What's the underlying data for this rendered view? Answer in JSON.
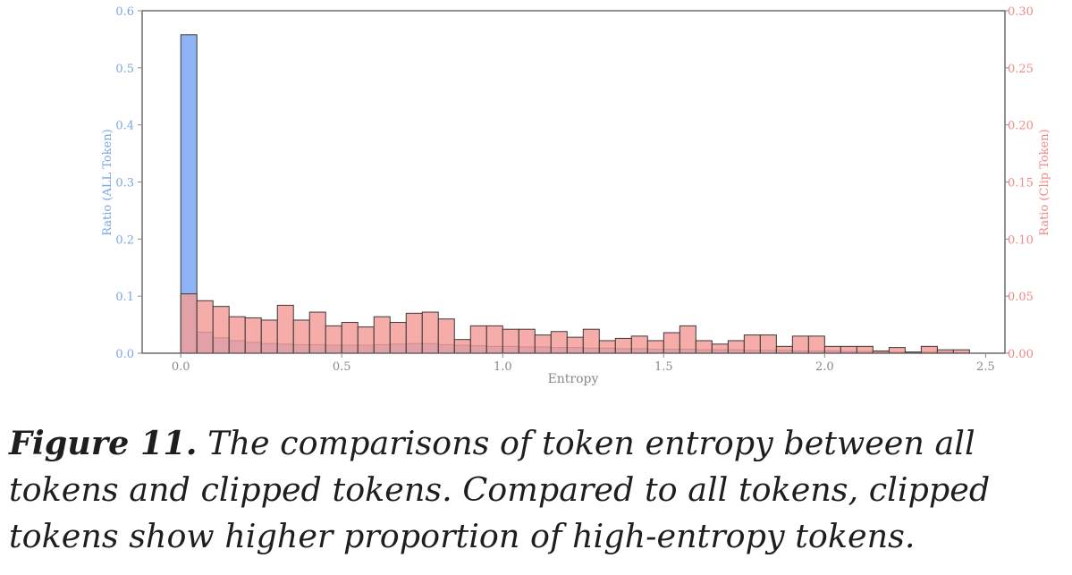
{
  "chart_data": {
    "type": "bar",
    "xlabel": "Entropy",
    "xlim": [
      -0.12,
      2.56
    ],
    "x_ticks": [
      "0.0",
      "0.5",
      "1.0",
      "1.5",
      "2.0",
      "2.5"
    ],
    "x_tick_values": [
      0.0,
      0.5,
      1.0,
      1.5,
      2.0,
      2.5
    ],
    "bin_width": 0.05,
    "bin_starts": [
      0.0,
      0.05,
      0.1,
      0.15,
      0.2,
      0.25,
      0.3,
      0.35,
      0.4,
      0.45,
      0.5,
      0.55,
      0.6,
      0.65,
      0.7,
      0.75,
      0.8,
      0.85,
      0.9,
      0.95,
      1.0,
      1.05,
      1.1,
      1.15,
      1.2,
      1.25,
      1.3,
      1.35,
      1.4,
      1.45,
      1.5,
      1.55,
      1.6,
      1.65,
      1.7,
      1.75,
      1.8,
      1.85,
      1.9,
      1.95,
      2.0,
      2.05,
      2.1,
      2.15,
      2.2,
      2.25,
      2.3,
      2.35,
      2.4
    ],
    "axes": {
      "left": {
        "label": "Ratio (ALL Token)",
        "ylim": [
          0,
          0.6
        ],
        "ticks": [
          "0.0",
          "0.1",
          "0.2",
          "0.3",
          "0.4",
          "0.5",
          "0.6"
        ],
        "tick_values": [
          0,
          0.1,
          0.2,
          0.3,
          0.4,
          0.5,
          0.6
        ],
        "color": "#7aa6e6"
      },
      "right": {
        "label": "Ratio (Clip Token)",
        "ylim": [
          0,
          0.3
        ],
        "ticks": [
          "0.00",
          "0.05",
          "0.10",
          "0.15",
          "0.20",
          "0.25",
          "0.30"
        ],
        "tick_values": [
          0,
          0.05,
          0.1,
          0.15,
          0.2,
          0.25,
          0.3
        ],
        "color": "#ef8a86"
      }
    },
    "series": [
      {
        "axis": "left",
        "color": "#8fb4f5",
        "values": [
          0.558,
          0.037,
          0.027,
          0.022,
          0.019,
          0.017,
          0.016,
          0.015,
          0.015,
          0.014,
          0.014,
          0.014,
          0.015,
          0.016,
          0.017,
          0.017,
          0.015,
          0.014,
          0.013,
          0.012,
          0.012,
          0.011,
          0.011,
          0.01,
          0.01,
          0.009,
          0.009,
          0.008,
          0.008,
          0.007,
          0.007,
          0.007,
          0.006,
          0.006,
          0.006,
          0.005,
          0.005,
          0.005,
          0.004,
          0.004,
          0.004,
          0.003,
          0.003,
          0.003,
          0.002,
          0.002,
          0.002,
          0.002,
          0.001
        ]
      },
      {
        "axis": "right",
        "color": "#f49b96",
        "values": [
          0.052,
          0.046,
          0.041,
          0.032,
          0.031,
          0.029,
          0.042,
          0.029,
          0.036,
          0.024,
          0.027,
          0.023,
          0.032,
          0.027,
          0.035,
          0.036,
          0.03,
          0.012,
          0.024,
          0.024,
          0.021,
          0.021,
          0.016,
          0.019,
          0.014,
          0.021,
          0.011,
          0.013,
          0.015,
          0.011,
          0.018,
          0.024,
          0.011,
          0.008,
          0.011,
          0.016,
          0.016,
          0.006,
          0.015,
          0.015,
          0.006,
          0.006,
          0.006,
          0.002,
          0.005,
          0.001,
          0.006,
          0.003,
          0.003
        ]
      }
    ]
  },
  "caption": {
    "label": "Figure 11.",
    "text": " The comparisons of token entropy between all tokens and clipped tokens. Compared to all tokens, clipped tokens show higher proportion of high-entropy tokens."
  }
}
